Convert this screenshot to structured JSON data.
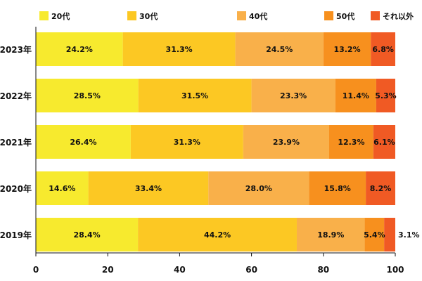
{
  "chart_data": {
    "type": "bar",
    "orientation": "horizontal",
    "stacked": true,
    "title": "",
    "xlabel": "",
    "ylabel": "",
    "xlim": [
      0,
      100
    ],
    "xticks": [
      0,
      20,
      40,
      60,
      80,
      100
    ],
    "grid": false,
    "legend_position": "top",
    "categories": [
      "2023年",
      "2022年",
      "2021年",
      "2020年",
      "2019年"
    ],
    "series": [
      {
        "name": "20代",
        "color": "#f7ea2e",
        "values": [
          24.2,
          28.5,
          26.4,
          14.6,
          28.4
        ],
        "labels": [
          "24.2%",
          "28.5%",
          "26.4%",
          "14.6%",
          "28.4%"
        ]
      },
      {
        "name": "30代",
        "color": "#fcc823",
        "values": [
          31.3,
          31.5,
          31.3,
          33.4,
          44.2
        ],
        "labels": [
          "31.3%",
          "31.5%",
          "31.3%",
          "33.4%",
          "44.2%"
        ]
      },
      {
        "name": "40代",
        "color": "#f9b04a",
        "values": [
          24.5,
          23.3,
          23.9,
          28.0,
          18.9
        ],
        "labels": [
          "24.5%",
          "23.3%",
          "23.9%",
          "28.0%",
          "18.9%"
        ]
      },
      {
        "name": "50代",
        "color": "#f7901e",
        "values": [
          13.2,
          11.4,
          12.3,
          15.8,
          5.4
        ],
        "labels": [
          "13.2%",
          "11.4%",
          "12.3%",
          "15.8%",
          "5.4%"
        ]
      },
      {
        "name": "それ以外",
        "color": "#f05a24",
        "values": [
          6.8,
          5.3,
          6.1,
          8.2,
          3.1
        ],
        "labels": [
          "6.8%",
          "5.3%",
          "6.1%",
          "8.2%",
          "3.1%"
        ]
      }
    ]
  }
}
